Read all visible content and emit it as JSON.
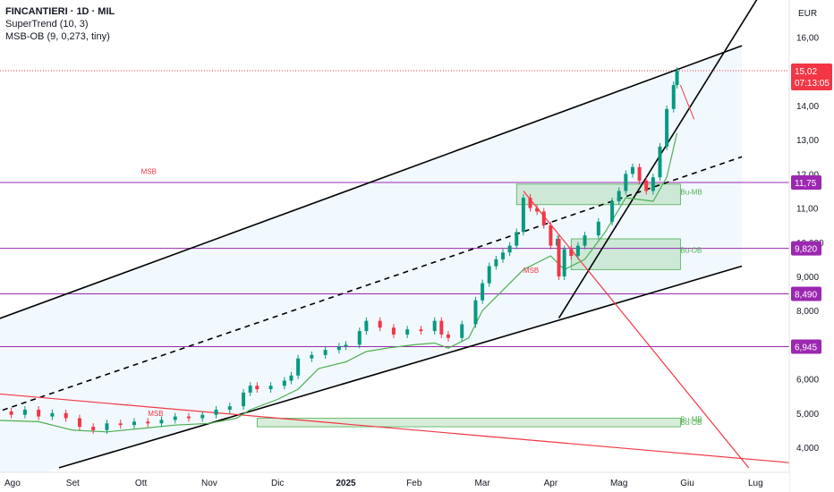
{
  "header": {
    "title": "FINCANTIERI · 1D · MIL",
    "indicator1": "SuperTrend (10, 3)",
    "indicator2": "MSB-OB (9, 0,273, tiny)"
  },
  "chart_data": {
    "type": "candlestick",
    "currency_label": "EUR",
    "y_ticks": [
      "16,00",
      "14,00",
      "13,00",
      "12,00",
      "11,00",
      "10,000",
      "9,000",
      "8,000",
      "6,000",
      "5,000",
      "4,000"
    ],
    "y_tick_values": [
      16,
      14,
      13,
      12,
      11,
      10,
      9,
      8,
      6,
      5,
      4
    ],
    "x_ticks": [
      "Ago",
      "Set",
      "Ott",
      "Nov",
      "Dic",
      "2025",
      "Feb",
      "Mar",
      "Apr",
      "Mag",
      "Giu",
      "Lug"
    ],
    "x_tick_months": [
      0,
      1,
      2,
      3,
      4,
      5,
      6,
      7,
      8,
      9,
      10,
      11
    ],
    "y_range": [
      3.3,
      16.9
    ],
    "price_levels": [
      {
        "label": "11,75",
        "value": 11.75,
        "color": "#9c27b0"
      },
      {
        "label": "9,820",
        "value": 9.82,
        "color": "#9c27b0"
      },
      {
        "label": "8,490",
        "value": 8.49,
        "color": "#9c27b0"
      },
      {
        "label": "6,945",
        "value": 6.945,
        "color": "#9c27b0"
      }
    ],
    "last_price": {
      "label": "15,02",
      "value": 15.02,
      "countdown": "07:13:05",
      "color": "#f23645"
    },
    "annotations": [
      {
        "text": "MSB",
        "month": 2.0,
        "value": 12.0
      },
      {
        "text": "MSB",
        "month": 7.6,
        "value": 9.1
      },
      {
        "text": "MSB",
        "month": 2.1,
        "value": 4.92
      },
      {
        "text": "MSB",
        "month": -0.4,
        "value": 4.4
      },
      {
        "text": "Bu-MB",
        "month": 9.9,
        "value": 11.4
      },
      {
        "text": "Bu-OB",
        "month": 9.9,
        "value": 9.7
      },
      {
        "text": "Bu-MB",
        "month": 9.9,
        "value": 4.75
      },
      {
        "text": "Bu-OB",
        "month": 9.9,
        "value": 4.65
      }
    ],
    "order_blocks": [
      {
        "m0": 7.5,
        "m1": 9.9,
        "v0": 11.1,
        "v1": 11.7,
        "color": "#4caf50"
      },
      {
        "m0": 8.3,
        "m1": 9.9,
        "v0": 9.2,
        "v1": 10.1,
        "color": "#4caf50"
      },
      {
        "m0": 3.7,
        "m1": 9.9,
        "v0": 4.6,
        "v1": 4.85,
        "color": "#4caf50"
      }
    ],
    "trendlines": [
      {
        "m0": -0.3,
        "v0": 7.6,
        "m1": 10.8,
        "v1": 15.75,
        "style": "solid",
        "color": "#000000"
      },
      {
        "m0": -0.3,
        "v0": 4.9,
        "m1": 10.8,
        "v1": 12.5,
        "style": "dashed",
        "color": "#000000"
      },
      {
        "m0": 0.8,
        "v0": 3.4,
        "m1": 10.8,
        "v1": 9.3,
        "style": "solid",
        "color": "#000000"
      },
      {
        "m0": 8.12,
        "v0": 7.78,
        "m1": 11.05,
        "v1": 17.2,
        "style": "solid",
        "color": "#000000"
      },
      {
        "m0": -0.3,
        "v0": 5.6,
        "m1": 11.5,
        "v1": 3.55,
        "style": "solid",
        "color": "#f23645"
      },
      {
        "m0": 7.6,
        "v0": 11.5,
        "m1": 10.9,
        "v1": 3.4,
        "style": "solid",
        "color": "#f23645"
      }
    ],
    "series": [
      {
        "name": "",
        "values": [
          [
            -0.3,
            5.0
          ],
          [
            -0.1,
            5.05
          ],
          [
            0.1,
            4.95
          ],
          [
            0.3,
            5.1
          ],
          [
            0.5,
            4.9
          ],
          [
            0.7,
            5.0
          ],
          [
            0.9,
            4.85
          ],
          [
            1.1,
            4.6
          ],
          [
            1.3,
            4.5
          ],
          [
            1.5,
            4.7
          ],
          [
            1.7,
            4.65
          ],
          [
            1.9,
            4.75
          ],
          [
            2.1,
            4.7
          ],
          [
            2.3,
            4.8
          ],
          [
            2.5,
            4.9
          ],
          [
            2.7,
            4.85
          ],
          [
            2.9,
            4.95
          ],
          [
            3.1,
            5.1
          ],
          [
            3.3,
            5.2
          ],
          [
            3.5,
            5.6
          ],
          [
            3.6,
            5.8
          ],
          [
            3.7,
            5.7
          ],
          [
            3.9,
            5.8
          ],
          [
            4.1,
            5.95
          ],
          [
            4.2,
            6.1
          ],
          [
            4.3,
            6.6
          ],
          [
            4.5,
            6.7
          ],
          [
            4.7,
            6.85
          ],
          [
            4.9,
            6.95
          ],
          [
            5.0,
            7.0
          ],
          [
            5.2,
            7.4
          ],
          [
            5.3,
            7.7
          ],
          [
            5.5,
            7.5
          ],
          [
            5.7,
            7.3
          ],
          [
            5.9,
            7.45
          ],
          [
            6.1,
            7.4
          ],
          [
            6.3,
            7.7
          ],
          [
            6.4,
            7.3
          ],
          [
            6.5,
            7.2
          ],
          [
            6.7,
            7.6
          ],
          [
            6.9,
            8.3
          ],
          [
            7.0,
            8.8
          ],
          [
            7.1,
            9.3
          ],
          [
            7.2,
            9.5
          ],
          [
            7.3,
            9.7
          ],
          [
            7.4,
            9.9
          ],
          [
            7.5,
            10.3
          ],
          [
            7.6,
            11.3
          ],
          [
            7.7,
            11.0
          ],
          [
            7.8,
            10.9
          ],
          [
            7.9,
            10.5
          ],
          [
            8.0,
            9.9
          ],
          [
            8.1,
            10.1
          ],
          [
            8.12,
            9.0
          ],
          [
            8.2,
            9.8
          ],
          [
            8.3,
            9.6
          ],
          [
            8.4,
            9.9
          ],
          [
            8.5,
            10.2
          ],
          [
            8.7,
            10.6
          ],
          [
            8.9,
            11.2
          ],
          [
            9.0,
            11.5
          ],
          [
            9.1,
            12.0
          ],
          [
            9.2,
            12.2
          ],
          [
            9.3,
            11.8
          ],
          [
            9.4,
            11.5
          ],
          [
            9.5,
            11.9
          ],
          [
            9.6,
            12.8
          ],
          [
            9.7,
            13.9
          ],
          [
            9.8,
            14.6
          ],
          [
            9.85,
            15.02
          ]
        ]
      },
      {
        "name": "",
        "values": [
          [
            -0.3,
            4.8
          ],
          [
            0.5,
            4.75
          ],
          [
            1.0,
            4.5
          ],
          [
            1.5,
            4.45
          ],
          [
            2.0,
            4.55
          ],
          [
            2.5,
            4.65
          ],
          [
            3.0,
            4.7
          ],
          [
            3.4,
            4.85
          ],
          [
            3.6,
            5.1
          ],
          [
            4.0,
            5.4
          ],
          [
            4.3,
            5.7
          ],
          [
            4.6,
            6.3
          ],
          [
            5.0,
            6.5
          ],
          [
            5.3,
            6.8
          ],
          [
            5.6,
            6.9
          ],
          [
            6.0,
            7.0
          ],
          [
            6.3,
            7.05
          ],
          [
            6.5,
            6.9
          ],
          [
            6.8,
            7.2
          ],
          [
            7.0,
            8.0
          ],
          [
            7.3,
            8.6
          ],
          [
            7.6,
            9.2
          ],
          [
            8.0,
            9.6
          ],
          [
            8.2,
            9.2
          ],
          [
            8.5,
            9.5
          ],
          [
            8.8,
            10.3
          ],
          [
            9.1,
            11.3
          ],
          [
            9.5,
            11.2
          ],
          [
            9.7,
            11.9
          ],
          [
            9.85,
            13.2
          ]
        ]
      }
    ]
  }
}
